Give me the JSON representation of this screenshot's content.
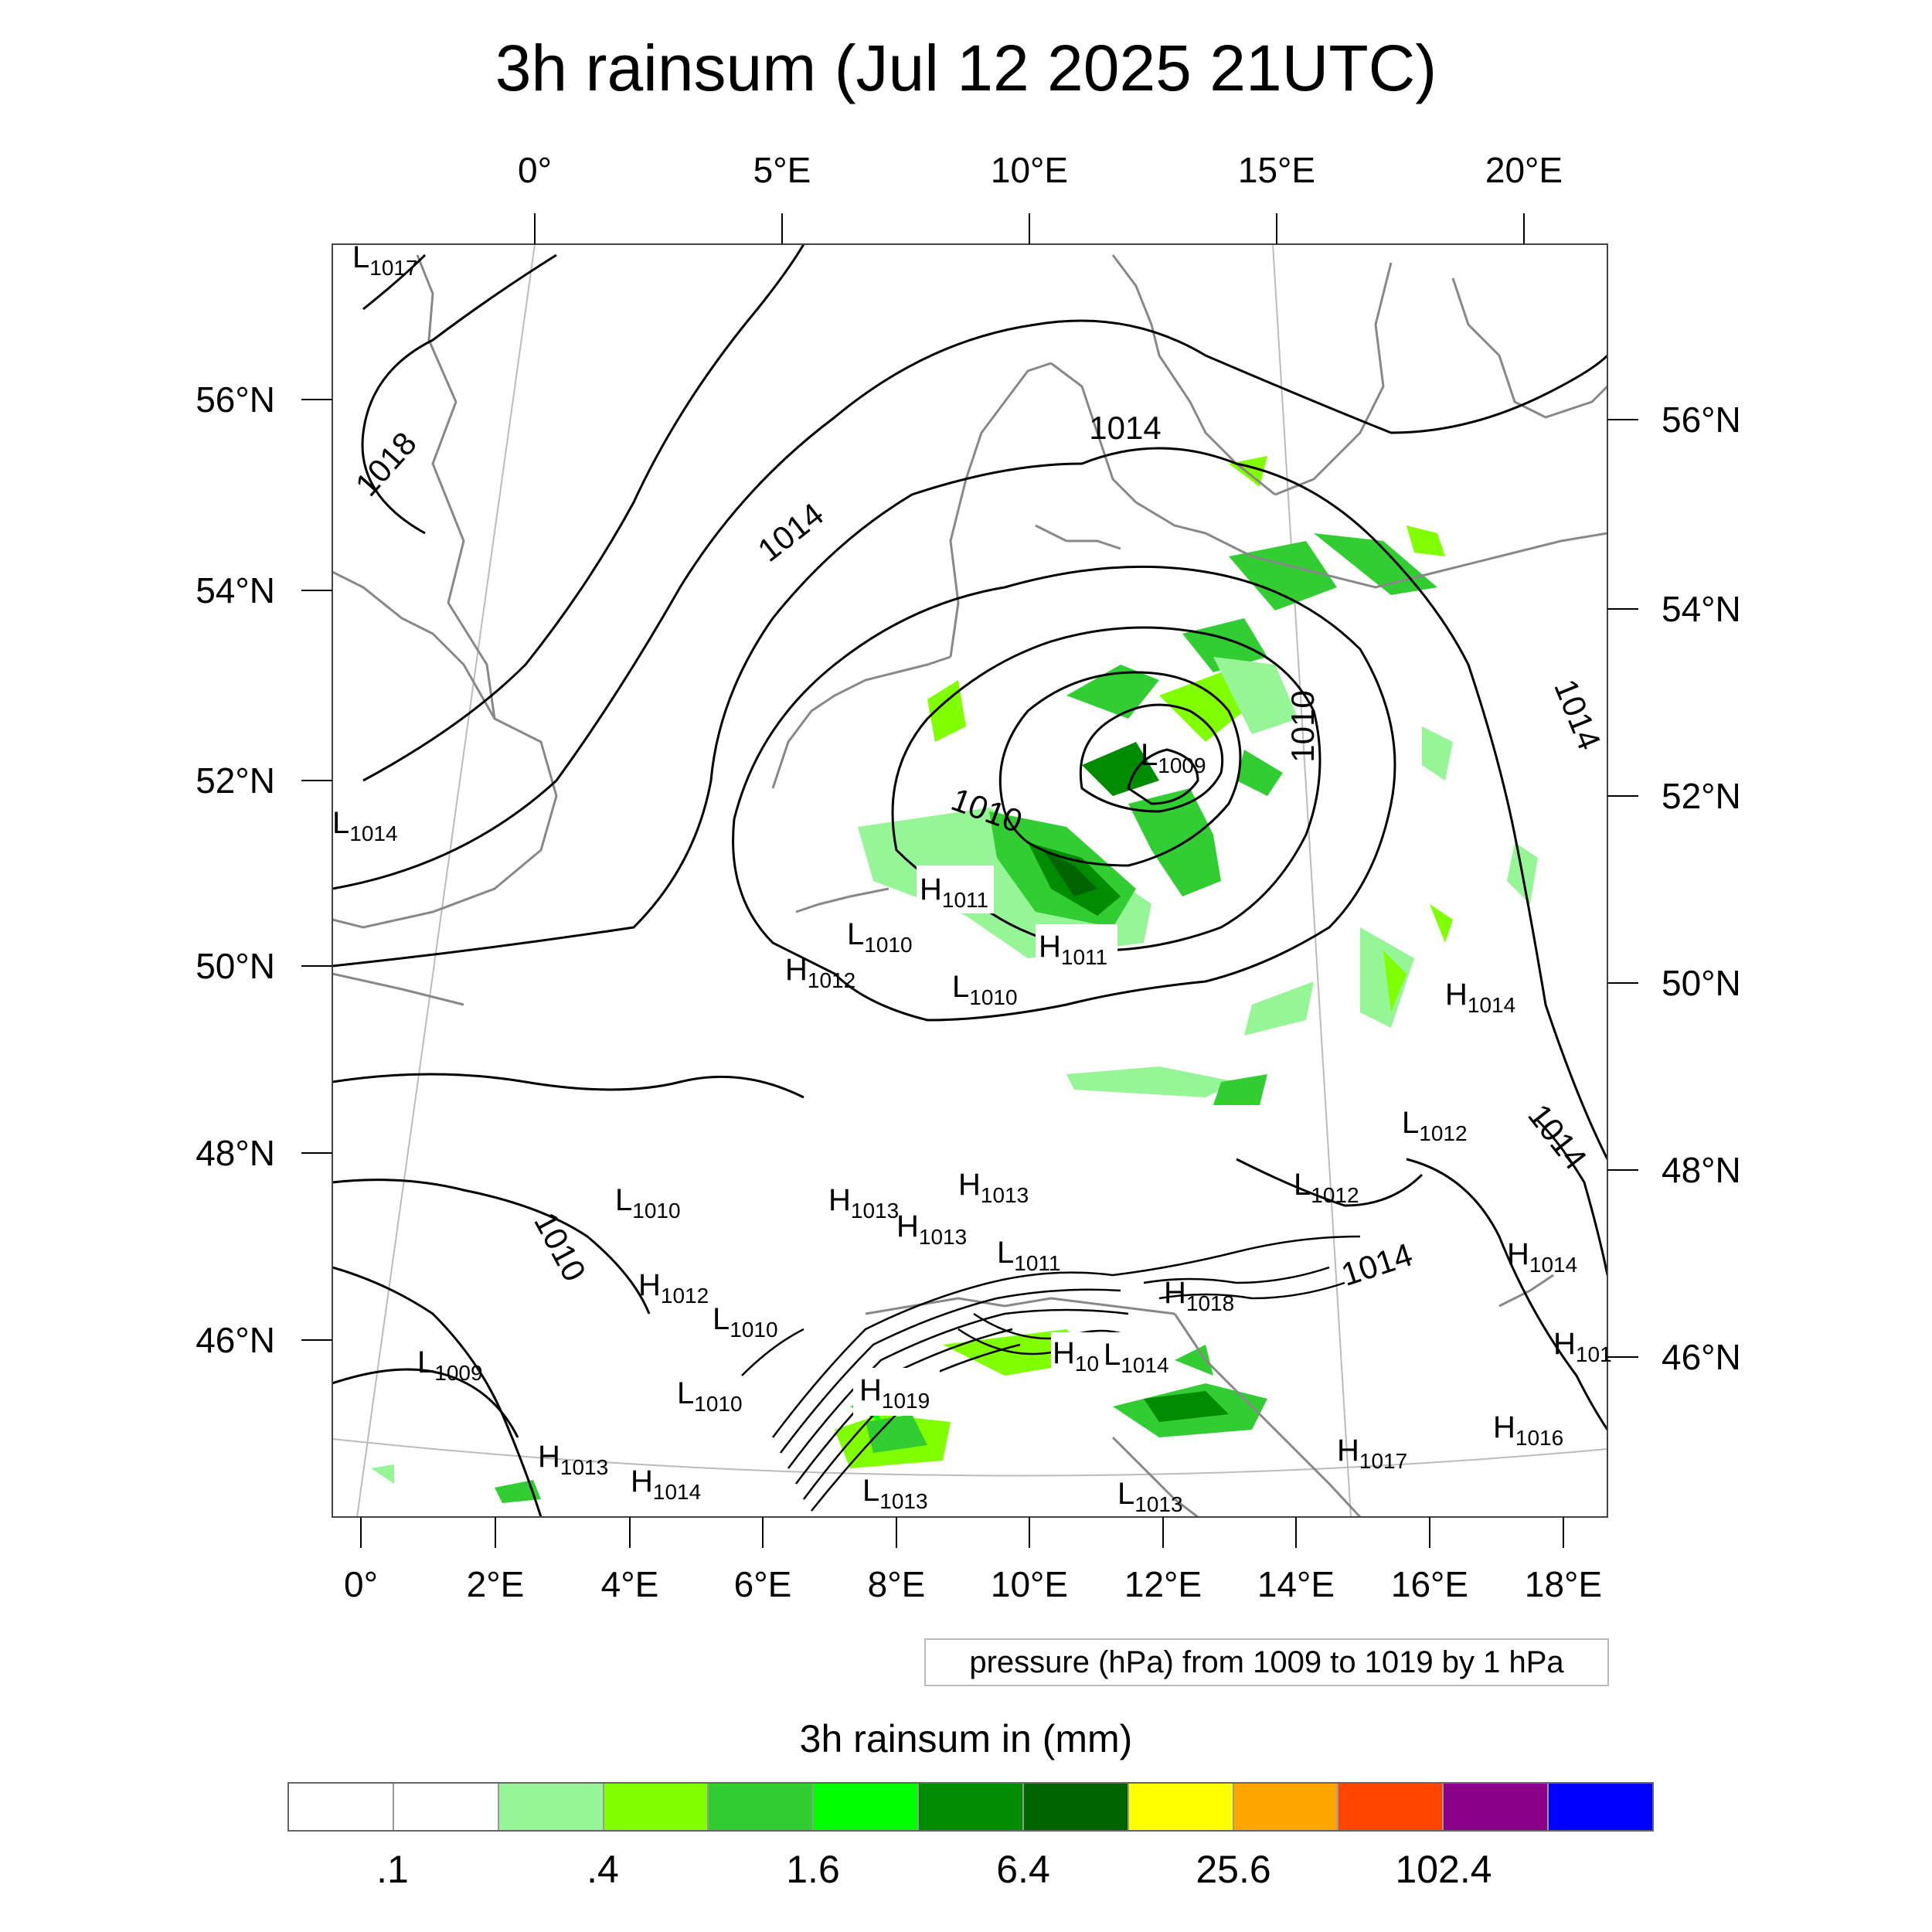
{
  "title": "3h rainsum (Jul 12 2025 21UTC)",
  "axes": {
    "top_lon": [
      "0°",
      "5°E",
      "10°E",
      "15°E",
      "20°E"
    ],
    "bottom_lon": [
      "0°",
      "2°E",
      "4°E",
      "6°E",
      "8°E",
      "10°E",
      "12°E",
      "14°E",
      "16°E",
      "18°E"
    ],
    "left_lat": [
      "56°N",
      "54°N",
      "52°N",
      "50°N",
      "48°N",
      "46°N"
    ],
    "right_lat": [
      "56°N",
      "54°N",
      "52°N",
      "50°N",
      "48°N",
      "46°N"
    ]
  },
  "pressure_centers": [
    {
      "t": "L",
      "v": "1017"
    },
    {
      "t": "L",
      "v": "1014"
    },
    {
      "t": "L",
      "v": "1009"
    },
    {
      "t": "H",
      "v": "1011"
    },
    {
      "t": "L",
      "v": "1010"
    },
    {
      "t": "H",
      "v": "1011"
    },
    {
      "t": "H",
      "v": "1012"
    },
    {
      "t": "L",
      "v": "1010"
    },
    {
      "t": "H",
      "v": "1014"
    },
    {
      "t": "L",
      "v": "1012"
    },
    {
      "t": "L",
      "v": "1012"
    },
    {
      "t": "H",
      "v": "1013"
    },
    {
      "t": "H",
      "v": "1013"
    },
    {
      "t": "H",
      "v": "1013"
    },
    {
      "t": "L",
      "v": "1010"
    },
    {
      "t": "L",
      "v": "1011"
    },
    {
      "t": "H",
      "v": "1014"
    },
    {
      "t": "H",
      "v": "1012"
    },
    {
      "t": "L",
      "v": "1010"
    },
    {
      "t": "H",
      "v": "1018"
    },
    {
      "t": "L",
      "v": "1009"
    },
    {
      "t": "L",
      "v": "1010"
    },
    {
      "t": "H",
      "v": "10"
    },
    {
      "t": "L",
      "v": "1014"
    },
    {
      "t": "H",
      "v": "1019"
    },
    {
      "t": "H",
      "v": "1013"
    },
    {
      "t": "H",
      "v": "1014"
    },
    {
      "t": "L",
      "v": "1013"
    },
    {
      "t": "L",
      "v": "1013"
    },
    {
      "t": "H",
      "v": "1017"
    },
    {
      "t": "H",
      "v": "1016"
    },
    {
      "t": "H",
      "v": "101"
    }
  ],
  "contour_labels": [
    "1018",
    "1014",
    "1014",
    "1010",
    "1010",
    "1014",
    "1014",
    "1010",
    "1014"
  ],
  "contour_note": "pressure (hPa) from 1009 to 1019 by 1 hPa",
  "legend": {
    "title": "3h rainsum in (mm)",
    "colors": [
      "#ffffff",
      "#ffffff",
      "#96f596",
      "#80ff00",
      "#32cd32",
      "#00ff00",
      "#008b00",
      "#006400",
      "#ffff00",
      "#ffa500",
      "#ff4500",
      "#8b008b",
      "#0000ff"
    ],
    "labels": [
      ".1",
      ".4",
      "1.6",
      "6.4",
      "25.6",
      "102.4"
    ]
  }
}
